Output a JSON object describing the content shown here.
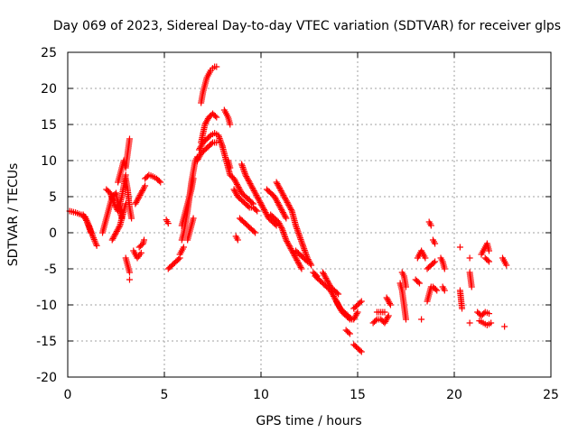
{
  "chart_data": {
    "type": "scatter",
    "title": "Day 069 of 2023, Sidereal Day-to-day VTEC variation (SDTVAR) for receiver glps",
    "xlabel": "GPS time / hours",
    "ylabel": "SDTVAR / TECUs",
    "xlim": [
      0,
      25
    ],
    "ylim": [
      -20,
      25
    ],
    "xticks": [
      0,
      5,
      10,
      15,
      20,
      25
    ],
    "yticks": [
      -20,
      -15,
      -10,
      -5,
      0,
      5,
      10,
      15,
      20,
      25
    ],
    "grid": true,
    "marker": "+",
    "color": "#ff0000",
    "segments": [
      {
        "x": [
          0.1,
          0.4,
          0.7,
          0.9,
          1.1,
          1.3,
          1.5
        ],
        "y": [
          3,
          2.8,
          2.5,
          2.2,
          1,
          -0.5,
          -1.8
        ]
      },
      {
        "x": [
          0.8,
          1.0,
          1.2
        ],
        "y": [
          2.5,
          1.5,
          0
        ]
      },
      {
        "x": [
          1.8,
          1.9,
          2.0,
          2.1,
          2.2,
          2.3,
          2.5,
          2.6,
          2.8
        ],
        "y": [
          0,
          1,
          2,
          3,
          4,
          5,
          5.5,
          4,
          2
        ]
      },
      {
        "x": [
          2.0,
          2.2,
          2.4,
          2.6,
          2.8,
          3.0
        ],
        "y": [
          6,
          5.5,
          4,
          3,
          5,
          8
        ]
      },
      {
        "x": [
          2.3,
          2.5,
          2.7,
          2.9,
          3.0
        ],
        "y": [
          -1,
          0,
          1,
          3,
          4
        ]
      },
      {
        "x": [
          2.6,
          2.7,
          2.8,
          2.9,
          3.0,
          3.1,
          3.15,
          3.2
        ],
        "y": [
          7,
          8,
          9,
          10,
          9,
          11,
          12,
          13
        ]
      },
      {
        "x": [
          3.0,
          3.1,
          3.2
        ],
        "y": [
          -3.5,
          -4.5,
          -5.5
        ]
      },
      {
        "x": [
          3.2
        ],
        "y": [
          -6.5
        ]
      },
      {
        "x": [
          3.0,
          3.1,
          3.2,
          3.3
        ],
        "y": [
          7.5,
          6,
          3.5,
          2
        ]
      },
      {
        "x": [
          3.4,
          3.5,
          3.6,
          3.8
        ],
        "y": [
          -2.5,
          -3,
          -3.5,
          -2.8
        ]
      },
      {
        "x": [
          3.7,
          3.9,
          3.95
        ],
        "y": [
          -2,
          -1.5,
          -1
        ]
      },
      {
        "x": [
          3.5,
          3.7,
          3.9,
          4.0
        ],
        "y": [
          4,
          5,
          6,
          6.5
        ]
      },
      {
        "x": [
          4.0,
          4.2,
          4.4,
          4.6,
          4.8
        ],
        "y": [
          7.5,
          8,
          7.8,
          7.5,
          7
        ]
      },
      {
        "x": [
          5.1,
          5.2
        ],
        "y": [
          1.8,
          1.3
        ]
      },
      {
        "x": [
          5.2,
          5.4,
          5.6,
          5.8
        ],
        "y": [
          -5,
          -4.5,
          -4,
          -3.5
        ]
      },
      {
        "x": [
          5.8,
          5.9,
          6.0
        ],
        "y": [
          -3,
          -2.5,
          -2
        ]
      },
      {
        "x": [
          5.9,
          6.0,
          6.1,
          6.2,
          6.3,
          6.4,
          6.5,
          6.6,
          6.7
        ],
        "y": [
          -1,
          0,
          1.5,
          3,
          5,
          7,
          8.5,
          10,
          10.5
        ]
      },
      {
        "x": [
          5.9,
          6.0,
          6.1,
          6.2,
          6.3,
          6.4,
          6.5
        ],
        "y": [
          1,
          2,
          3,
          4,
          5,
          6,
          7.5
        ]
      },
      {
        "x": [
          6.2,
          6.3,
          6.4,
          6.5
        ],
        "y": [
          -1,
          0,
          1,
          2
        ]
      },
      {
        "x": [
          6.7,
          6.9,
          7.1,
          7.3,
          7.5,
          7.7
        ],
        "y": [
          10,
          11,
          11.5,
          12,
          12.5,
          12.5
        ]
      },
      {
        "x": [
          6.8,
          7.0,
          7.2,
          7.4,
          7.6,
          7.8,
          8.0
        ],
        "y": [
          11.5,
          12.5,
          13,
          13.5,
          13.8,
          13.5,
          12
        ]
      },
      {
        "x": [
          6.9,
          7.0,
          7.1,
          7.2,
          7.3,
          7.4,
          7.5,
          7.6,
          7.7
        ],
        "y": [
          18,
          19.5,
          20.5,
          21.5,
          22,
          22.5,
          22.8,
          23,
          23
        ]
      },
      {
        "x": [
          6.9,
          7.1,
          7.3,
          7.5,
          7.7
        ],
        "y": [
          12.5,
          15,
          16,
          16.5,
          16
        ]
      },
      {
        "x": [
          8.1,
          8.2,
          8.3,
          8.4
        ],
        "y": [
          17,
          16.5,
          16,
          15
        ]
      },
      {
        "x": [
          8.3,
          8.4
        ],
        "y": [
          10,
          9
        ]
      },
      {
        "x": [
          8.0,
          8.2,
          8.4,
          8.6,
          8.8,
          9.0,
          9.2,
          9.4,
          9.6
        ],
        "y": [
          12,
          10,
          8,
          7.5,
          6.5,
          5.5,
          5,
          4.5,
          4
        ]
      },
      {
        "x": [
          8.6,
          8.8,
          9.0,
          9.2,
          9.4,
          9.6,
          9.8
        ],
        "y": [
          6,
          5,
          4.5,
          4,
          3.5,
          3.5,
          3
        ]
      },
      {
        "x": [
          9.0,
          9.2,
          9.4,
          9.6,
          9.8,
          10.0
        ],
        "y": [
          9.5,
          8,
          7,
          6,
          5,
          4
        ]
      },
      {
        "x": [
          8.9,
          9.1,
          9.3,
          9.5,
          9.7
        ],
        "y": [
          2,
          1.5,
          1,
          0.5,
          0
        ]
      },
      {
        "x": [
          8.7,
          8.8
        ],
        "y": [
          -0.5,
          -1
        ]
      },
      {
        "x": [
          10.0,
          10.2,
          10.4,
          10.6,
          10.8
        ],
        "y": [
          4,
          3,
          2,
          1.5,
          1
        ]
      },
      {
        "x": [
          10.3,
          10.5,
          10.7,
          10.9,
          11.1,
          11.3
        ],
        "y": [
          6,
          5.5,
          5,
          4,
          3,
          2
        ]
      },
      {
        "x": [
          10.5,
          10.7,
          10.9,
          11.1,
          11.3,
          11.5,
          11.7,
          11.9,
          12.1
        ],
        "y": [
          2.5,
          2,
          1.5,
          0.5,
          -1,
          -2,
          -3,
          -4,
          -5
        ]
      },
      {
        "x": [
          10.8,
          11.0,
          11.2,
          11.4,
          11.6,
          11.8,
          12.0,
          12.2,
          12.4,
          12.6
        ],
        "y": [
          7,
          6,
          5,
          4,
          3,
          1,
          -0.5,
          -2,
          -3.5,
          -4.5
        ]
      },
      {
        "x": [
          11.8,
          12.0,
          12.2,
          12.4
        ],
        "y": [
          -2.5,
          -3,
          -3.5,
          -4
        ]
      },
      {
        "x": [
          12.7,
          12.9
        ],
        "y": [
          -5.5,
          -6
        ]
      },
      {
        "x": [
          12.8,
          13.0,
          13.2,
          13.4,
          13.6,
          13.8,
          14.0,
          14.2,
          14.4,
          14.6,
          14.8,
          15.0
        ],
        "y": [
          -6,
          -6.5,
          -7,
          -7.5,
          -8,
          -9,
          -10,
          -11,
          -11.5,
          -12,
          -12,
          -11
        ]
      },
      {
        "x": [
          13.2,
          13.4,
          13.6,
          13.8,
          14.0
        ],
        "y": [
          -5.5,
          -6.5,
          -7.5,
          -8,
          -8.5
        ]
      },
      {
        "x": [
          13.9,
          14.1,
          14.3,
          14.5,
          14.7
        ],
        "y": [
          -9.5,
          -10.5,
          -11,
          -11.5,
          -12
        ]
      },
      {
        "x": [
          14.4,
          14.6
        ],
        "y": [
          -13.5,
          -14
        ]
      },
      {
        "x": [
          14.8,
          15.0,
          15.2
        ],
        "y": [
          -15.5,
          -16,
          -16.5
        ]
      },
      {
        "x": [
          14.8,
          15.0,
          15.2
        ],
        "y": [
          -10.5,
          -10,
          -9.5
        ]
      },
      {
        "x": [
          15.8,
          16.0,
          16.2,
          16.4,
          16.6
        ],
        "y": [
          -12.5,
          -12,
          -12,
          -12.5,
          -11.5
        ]
      },
      {
        "x": [
          16.0,
          16.4
        ],
        "y": [
          -11,
          -11
        ]
      },
      {
        "x": [
          16.5,
          16.7
        ],
        "y": [
          -9,
          -10
        ]
      },
      {
        "x": [
          17.2,
          17.3,
          17.4,
          17.5
        ],
        "y": [
          -7,
          -8,
          -10,
          -12
        ]
      },
      {
        "x": [
          17.3,
          17.4,
          17.5
        ],
        "y": [
          -5.5,
          -6,
          -7.5
        ]
      },
      {
        "x": [
          18.0,
          18.2
        ],
        "y": [
          -6.5,
          -7
        ]
      },
      {
        "x": [
          18.1,
          18.2,
          18.3,
          18.4,
          18.5
        ],
        "y": [
          -3.5,
          -3,
          -2.5,
          -3,
          -3.5
        ]
      },
      {
        "x": [
          18.3
        ],
        "y": [
          -12
        ]
      },
      {
        "x": [
          18.6,
          18.7,
          18.8
        ],
        "y": [
          -9.5,
          -8.5,
          -7.5
        ]
      },
      {
        "x": [
          18.7,
          18.8
        ],
        "y": [
          1.5,
          1
        ]
      },
      {
        "x": [
          18.6,
          18.8,
          19.0
        ],
        "y": [
          -5,
          -4.5,
          -4
        ]
      },
      {
        "x": [
          18.9,
          19.0
        ],
        "y": [
          -1,
          -1.5
        ]
      },
      {
        "x": [
          18.9,
          19.1
        ],
        "y": [
          -7.5,
          -8
        ]
      },
      {
        "x": [
          19.3,
          19.4,
          19.5
        ],
        "y": [
          -3.5,
          -4,
          -5
        ]
      },
      {
        "x": [
          19.4,
          19.5
        ],
        "y": [
          -7.5,
          -8
        ]
      },
      {
        "x": [
          20.3
        ],
        "y": [
          -2
        ]
      },
      {
        "x": [
          20.3,
          20.4
        ],
        "y": [
          -8,
          -10.5
        ]
      },
      {
        "x": [
          20.8
        ],
        "y": [
          -3.5
        ]
      },
      {
        "x": [
          20.8,
          20.9
        ],
        "y": [
          -5.5,
          -7.5
        ]
      },
      {
        "x": [
          20.8
        ],
        "y": [
          -12.5
        ]
      },
      {
        "x": [
          21.2,
          21.4,
          21.6,
          21.8
        ],
        "y": [
          -11,
          -11.5,
          -11,
          -11.2
        ]
      },
      {
        "x": [
          21.3,
          21.5,
          21.7,
          21.9
        ],
        "y": [
          -12.2,
          -12.5,
          -12.8,
          -12.5
        ]
      },
      {
        "x": [
          21.4,
          21.5,
          21.6,
          21.7,
          21.8
        ],
        "y": [
          -3,
          -2.5,
          -2,
          -1.5,
          -2.5
        ]
      },
      {
        "x": [
          21.6,
          21.8
        ],
        "y": [
          -3.5,
          -4
        ]
      },
      {
        "x": [
          22.5,
          22.6,
          22.7
        ],
        "y": [
          -3.5,
          -4,
          -4.5
        ]
      },
      {
        "x": [
          22.6
        ],
        "y": [
          -13
        ]
      }
    ]
  }
}
